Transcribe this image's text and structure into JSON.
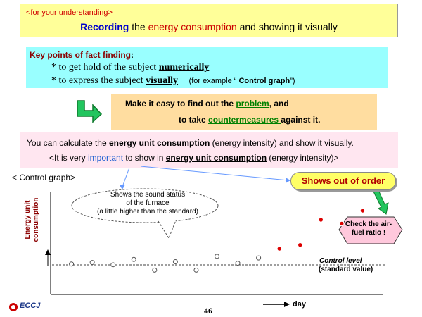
{
  "header": {
    "tag": "<for your understanding>",
    "title_pre": "Recording",
    "title_mid1": " the ",
    "title_red": "energy consumption",
    "title_post": " and showing it visually"
  },
  "key_points": {
    "title": "Key points of fact finding",
    "colon": ":",
    "line1_pre": "*  to get hold of the subject ",
    "line1_em": "numerically",
    "line2_pre": "* to express the subject ",
    "line2_em": "visually",
    "line2_ex_pre": "(for example “ ",
    "line2_ex_b": "Control graph",
    "line2_ex_post": "”)"
  },
  "easy": {
    "l1_pre": "Make it easy to find out the ",
    "l1_em": "problem",
    "l1_post": ", and",
    "l2_pre": "to take ",
    "l2_em": "countermeasures ",
    "l2_post": "against it."
  },
  "calc": {
    "l1_pre": "You can calculate the ",
    "l1_em": "energy unit consumption",
    "l1_post": " (energy intensity) and show it visually.",
    "l2_pre": "<It is very ",
    "l2_blue": "important",
    "l2_mid": " to show in ",
    "l2_em": "energy unit consumption",
    "l2_post": " (energy intensity)>"
  },
  "chart": {
    "title": "< Control graph>",
    "ylabel_1": "Energy unit",
    "ylabel_2": "consumption",
    "xlabel": "day",
    "control_level": "Control level",
    "standard_value": "(standard value)",
    "annot_sound_1": "Shows the sound status",
    "annot_sound_2": "of the furnace",
    "annot_sound_3": "(a little higher than the standard)",
    "annot_out": "Shows out of order",
    "check_1": "Check the air-",
    "check_2": "fuel ratio !",
    "colors": {
      "normal_marker": "#555555",
      "abnormal_marker": "#dd0000",
      "accent": "#6699ff"
    }
  },
  "chart_data": {
    "type": "scatter",
    "title": "< Control graph>",
    "xlabel": "day",
    "ylabel": "Energy unit consumption",
    "control_level": 0.34,
    "series": [
      {
        "values": [
          0.4,
          0.42,
          0.39,
          0.46,
          0.32,
          0.43,
          0.32,
          0.5,
          0.41,
          0.48
        ]
      },
      {
        "values": [
          0.6,
          0.65,
          0.98,
          0.93,
          1.1
        ]
      }
    ],
    "x": [
      1,
      2,
      3,
      4,
      5,
      6,
      7,
      8,
      9,
      10,
      11,
      12,
      13,
      14,
      15
    ]
  },
  "footer": {
    "page": "46",
    "logo": "ECCJ"
  }
}
